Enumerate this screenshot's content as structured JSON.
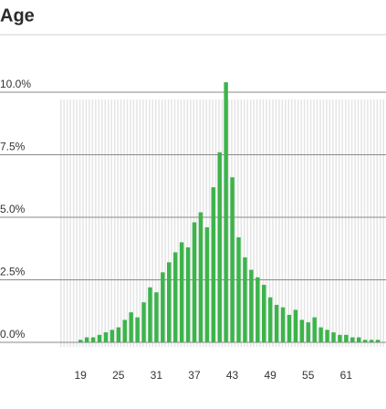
{
  "chart_data": {
    "type": "histogram",
    "title": "Age",
    "x": [
      19,
      20,
      21,
      22,
      23,
      24,
      25,
      26,
      27,
      28,
      29,
      30,
      31,
      32,
      33,
      34,
      35,
      36,
      37,
      38,
      39,
      40,
      41,
      42,
      43,
      44,
      45,
      46,
      47,
      48,
      49,
      50,
      51,
      52,
      53,
      54,
      55,
      56,
      57,
      58,
      59,
      60,
      61,
      62,
      63,
      64,
      65,
      66
    ],
    "values": [
      0.1,
      0.2,
      0.2,
      0.3,
      0.4,
      0.5,
      0.6,
      0.9,
      1.2,
      1.0,
      1.6,
      2.2,
      2.0,
      2.8,
      3.2,
      3.6,
      4.0,
      3.8,
      4.8,
      5.2,
      4.6,
      6.2,
      7.6,
      10.4,
      6.6,
      4.2,
      3.4,
      2.9,
      2.6,
      2.3,
      1.8,
      1.5,
      1.4,
      1.1,
      1.3,
      0.9,
      0.8,
      1.0,
      0.6,
      0.5,
      0.4,
      0.3,
      0.3,
      0.2,
      0.2,
      0.1,
      0.1,
      0.1
    ],
    "color": "#3cb44b",
    "xlim": [
      15.8,
      67.3
    ],
    "xticks": [
      19,
      25,
      31,
      37,
      43,
      49,
      55,
      61
    ],
    "ylim": [
      0,
      10.6
    ],
    "yticks": [
      {
        "value": 0,
        "label": "0.0%"
      },
      {
        "value": 2.5,
        "label": "2.5%"
      },
      {
        "value": 5,
        "label": "5.0%"
      },
      {
        "value": 7.5,
        "label": "7.5%"
      },
      {
        "value": 10,
        "label": "10.0%"
      }
    ],
    "grid": true
  }
}
